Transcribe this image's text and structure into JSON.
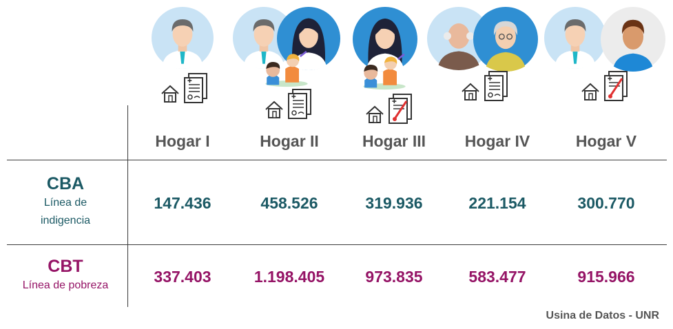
{
  "households": [
    {
      "header": "Hogar I",
      "cba": "147.436",
      "cbt": "337.403"
    },
    {
      "header": "Hogar II",
      "cba": "458.526",
      "cbt": "1.198.405"
    },
    {
      "header": "Hogar III",
      "cba": "319.936",
      "cbt": "973.835"
    },
    {
      "header": "Hogar IV",
      "cba": "221.154",
      "cbt": "583.477"
    },
    {
      "header": "Hogar V",
      "cba": "300.770",
      "cbt": "915.966"
    }
  ],
  "rows": {
    "cba": {
      "label": "CBA",
      "sublabel_line1": "Línea de",
      "sublabel_line2": "indigencia",
      "color": "#1b5964"
    },
    "cbt": {
      "label": "CBT",
      "sublabel": "Línea de pobreza",
      "color": "#951466"
    }
  },
  "source": "Usina de Datos - UNR",
  "chart_data": {
    "type": "table",
    "categories": [
      "Hogar I",
      "Hogar II",
      "Hogar III",
      "Hogar IV",
      "Hogar V"
    ],
    "series": [
      {
        "name": "CBA",
        "values": [
          147436,
          458526,
          319936,
          221154,
          300770
        ]
      },
      {
        "name": "CBT",
        "values": [
          337403,
          1198405,
          973835,
          583477,
          915966
        ]
      }
    ]
  },
  "icons": [
    "man-avatar-icon",
    "woman-avatar-icon",
    "children-icon",
    "elderly-man-avatar-icon",
    "elderly-woman-avatar-icon",
    "young-man-avatar-icon",
    "house-icon",
    "document-icon",
    "document-with-thermometer-icon"
  ]
}
